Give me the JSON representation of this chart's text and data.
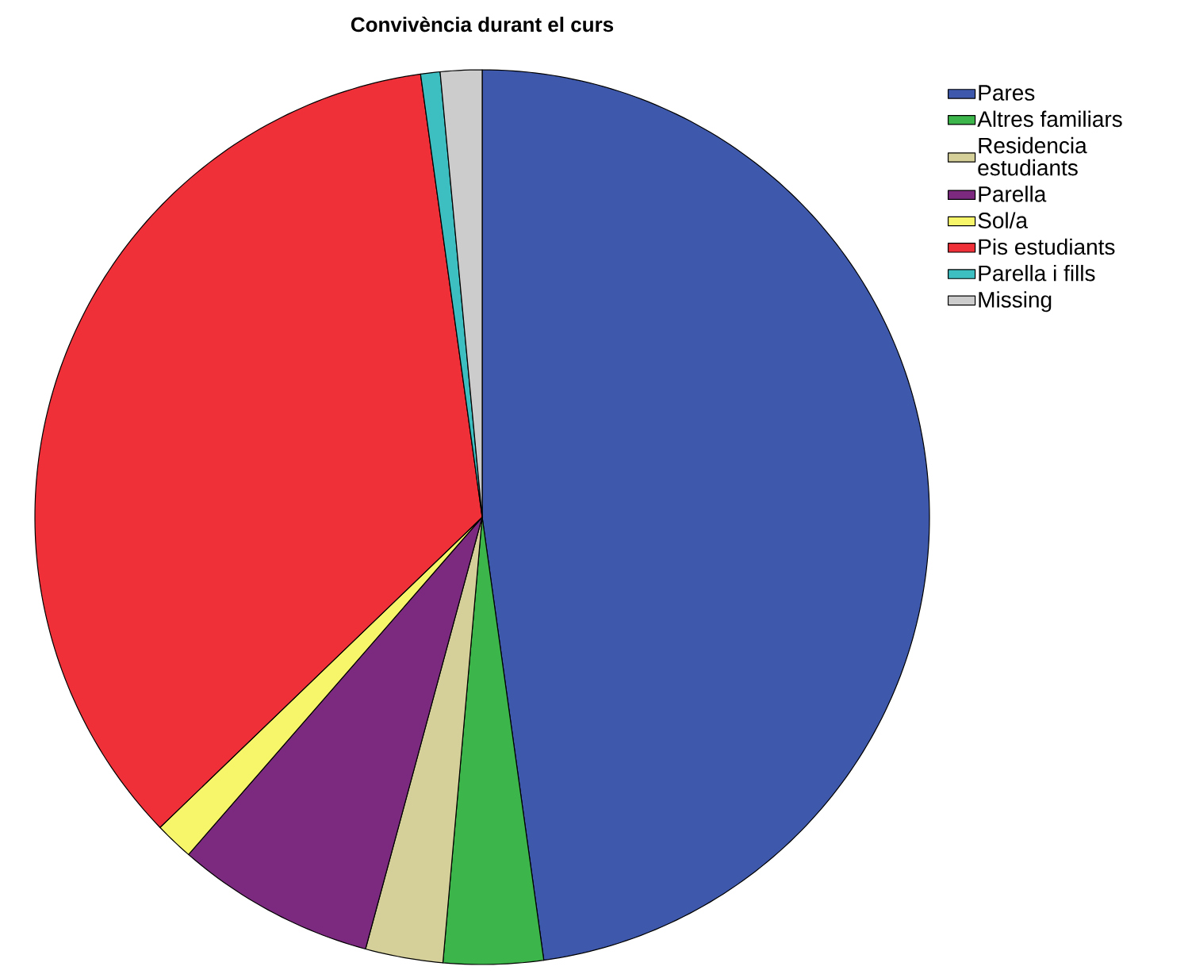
{
  "chart_data": {
    "type": "pie",
    "title": "Convivència durant el curs",
    "categories": [
      "Pares",
      "Altres familiars",
      "Residencia estudiants",
      "Parella",
      "Sol/a",
      "Pis estudiants",
      "Parella i fills",
      "Missing"
    ],
    "values": [
      47.8,
      3.6,
      2.8,
      7.2,
      1.4,
      35.0,
      0.7,
      1.5
    ],
    "colors": [
      "#3e58ac",
      "#3cb54a",
      "#d5d09a",
      "#7b2a7f",
      "#f7f56a",
      "#ef3038",
      "#3dbec0",
      "#cccccc"
    ],
    "legend": "top right"
  }
}
